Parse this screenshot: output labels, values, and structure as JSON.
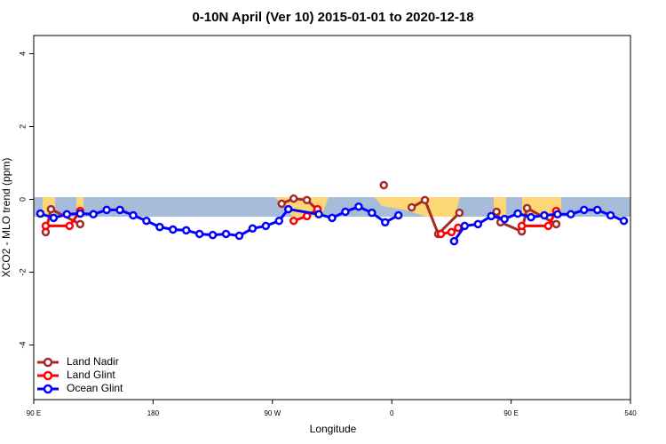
{
  "chart_data": {
    "type": "line",
    "title": "0-10N April (Ver 10)   2015-01-01 to 2020-12-18",
    "xlabel": "Longitude",
    "ylabel": "XCO2 - MLO trend (ppm)",
    "xlim": [
      90,
      540
    ],
    "ylim": [
      -5.5,
      4.5
    ],
    "xticks": [
      {
        "value": 90,
        "label": "90 E"
      },
      180,
      {
        "value": 270,
        "label": "90 W"
      },
      {
        "value": 360,
        "label": "0"
      },
      {
        "value": 450,
        "label": "90 E"
      },
      540
    ],
    "yticks": [
      -4,
      -2,
      0,
      2,
      4
    ],
    "legend": "bottom-left",
    "series": [
      {
        "name": "Land Nadir",
        "color": "#a52a2a",
        "x": [
          99,
          103,
          125,
          200,
          277,
          286,
          296,
          304,
          330,
          354,
          340,
          375,
          385,
          395,
          411,
          420,
          439,
          442,
          458,
          462,
          484
        ],
        "values": [
          -0.9,
          -0.27,
          -0.68,
          null,
          -0.12,
          0.02,
          -0.02,
          -0.29,
          null,
          0.39,
          null,
          -0.22,
          -0.02,
          -0.95,
          -0.37,
          null,
          -0.34,
          -0.63,
          -0.88,
          -0.24,
          -0.68
        ]
      },
      {
        "name": "Land Glint",
        "color": "#ff0000",
        "x": [
          99,
          117,
          125,
          200,
          286,
          296,
          304,
          350,
          397,
          405,
          410,
          430,
          458,
          478,
          484
        ],
        "values": [
          -0.73,
          -0.73,
          -0.32,
          null,
          -0.59,
          -0.46,
          -0.27,
          null,
          -0.95,
          -0.9,
          -0.78,
          null,
          -0.73,
          -0.73,
          -0.32
        ]
      },
      {
        "name": "Ocean Glint",
        "color": "#0000ff",
        "x": [
          95,
          105,
          115,
          125,
          135,
          145,
          155,
          165,
          175,
          185,
          195,
          205,
          215,
          225,
          235,
          245,
          255,
          265,
          275,
          282,
          305,
          315,
          325,
          335,
          345,
          355,
          365,
          385,
          407,
          415,
          425,
          435,
          445,
          455,
          465,
          475,
          485,
          495,
          505,
          515,
          525,
          535
        ],
        "values": [
          -0.39,
          -0.51,
          -0.41,
          -0.39,
          -0.41,
          -0.29,
          -0.29,
          -0.44,
          -0.59,
          -0.76,
          -0.83,
          -0.85,
          -0.95,
          -0.98,
          -0.95,
          -1.0,
          -0.8,
          -0.73,
          -0.59,
          -0.27,
          -0.41,
          -0.51,
          -0.34,
          -0.2,
          -0.37,
          -0.63,
          -0.44,
          null,
          -1.15,
          -0.73,
          -0.68,
          -0.46,
          -0.54,
          -0.39,
          -0.49,
          -0.44,
          -0.41,
          -0.41,
          -0.29,
          -0.29,
          -0.44,
          -0.59
        ]
      }
    ]
  }
}
